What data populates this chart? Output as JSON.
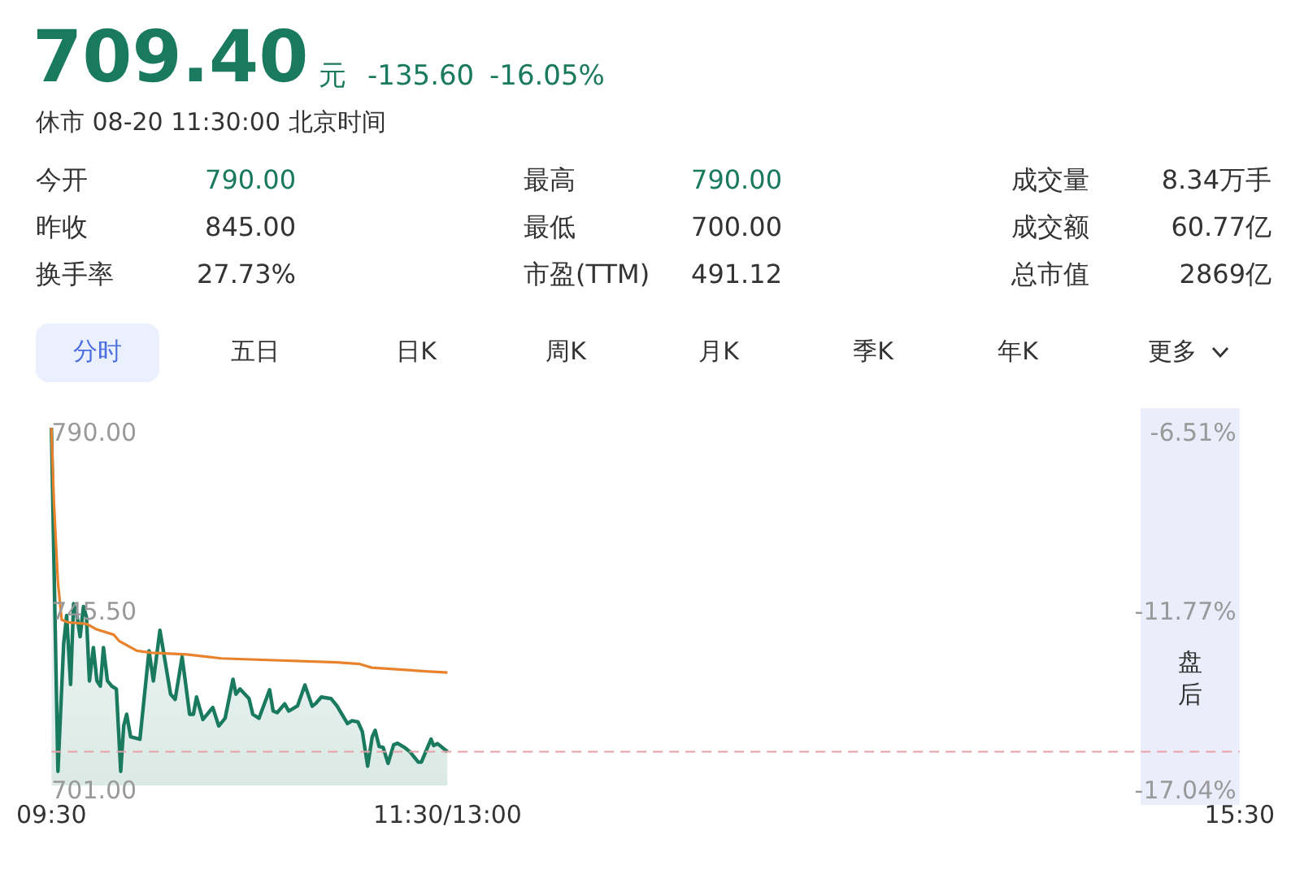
{
  "chart_data": [
    {
      "type": "other",
      "title": "709.40",
      "subtitle": "休市 08-20 11:30:00 北京时间",
      "annotations": [
        "元",
        "-135.60",
        "-16.05%",
        "今开",
        "790.00",
        "最高",
        "790.00",
        "成交量",
        "8.34万手",
        "昨收",
        "845.00",
        "最低",
        "700.00",
        "成交额",
        "60.77亿",
        "换手率",
        "27.73%",
        "市盈(TTM)",
        "491.12",
        "总市值",
        "2869亿",
        "分时",
        "五日",
        "日K",
        "周K",
        "月K",
        "季K",
        "年K",
        "更多"
      ]
    },
    {
      "type": "line",
      "xlim": [
        9.5,
        15.5
      ],
      "xticks": [
        {
          "value": 9.5,
          "label": "09:30"
        },
        {
          "value": 11.5,
          "label": "11:30/13:00"
        },
        {
          "value": 15.5,
          "label": "15:30"
        }
      ],
      "ylim": [
        701,
        790
      ],
      "yticks": [
        {
          "value": 790,
          "label": "790.00"
        },
        {
          "value": 745.5,
          "label": "745.50"
        },
        {
          "value": 701,
          "label": "701.00"
        }
      ],
      "y2lim": [
        -17.04,
        -6.51
      ],
      "y2ticks": [
        {
          "value": -6.51,
          "label": "-6.51%"
        },
        {
          "value": -11.77,
          "label": "-11.77%"
        },
        {
          "value": -17.04,
          "label": "-17.04%"
        }
      ],
      "series": [
        {
          "type": "area",
          "color": "#1a7a5e",
          "x": [
            9.5,
            9.533,
            9.562,
            9.577,
            9.597,
            9.612,
            9.628,
            9.645,
            9.662,
            9.677,
            9.692,
            9.712,
            9.73,
            9.747,
            9.763,
            9.783,
            9.805,
            9.828,
            9.85,
            9.865,
            9.88,
            9.9,
            9.947,
            9.993,
            10.015,
            10.048,
            10.102,
            10.125,
            10.16,
            10.198,
            10.217,
            10.233,
            10.265,
            10.315,
            10.345,
            10.377,
            10.417,
            10.432,
            10.452,
            10.498,
            10.517,
            10.548,
            10.602,
            10.62,
            10.64,
            10.678,
            10.698,
            10.743,
            10.78,
            10.817,
            10.835,
            10.863,
            10.912,
            10.942,
            10.995,
            11.018,
            11.048,
            11.07,
            11.097,
            11.12,
            11.135,
            11.155,
            11.175,
            11.2,
            11.228,
            11.248,
            11.282,
            11.31,
            11.353,
            11.368,
            11.417,
            11.43,
            11.45,
            11.5
          ],
          "values": [
            790,
            704.5,
            736.3,
            743.3,
            726.1,
            746.2,
            743.6,
            738,
            745.5,
            742.9,
            727,
            735.3,
            727,
            725.7,
            735.3,
            727,
            725.7,
            725,
            704.5,
            715.8,
            718.7,
            713.1,
            712.5,
            734.5,
            727,
            739.6,
            723.7,
            722.4,
            733,
            718.7,
            718.7,
            723,
            717.4,
            720.4,
            715.8,
            717.7,
            727.4,
            723.7,
            725,
            722.6,
            718.7,
            717.7,
            724.8,
            719.5,
            719.1,
            721.3,
            719.5,
            720.8,
            726,
            720.7,
            721.4,
            723,
            722.6,
            720.8,
            716.4,
            717.1,
            716.8,
            714.4,
            705.8,
            713.1,
            714.7,
            710.7,
            710.5,
            706.5,
            711.1,
            711.5,
            710.5,
            709.4,
            706.8,
            706.8,
            712.5,
            710.9,
            711.4,
            709.4
          ]
        },
        {
          "type": "line",
          "color": "#e8822c",
          "x": [
            9.5,
            9.513,
            9.533,
            9.552,
            9.582,
            9.677,
            9.725,
            9.815,
            9.843,
            9.932,
            10.008,
            10.183,
            10.358,
            10.535,
            10.942,
            11.058,
            11.117,
            11.388,
            11.5
          ],
          "values": [
            790,
            771.3,
            751.5,
            742.2,
            741.6,
            741.2,
            739.9,
            738.5,
            736.9,
            734.5,
            734,
            733.6,
            732.6,
            732.3,
            731.6,
            731.2,
            730.3,
            729.4,
            729.1
          ]
        }
      ],
      "ref_lines": [
        {
          "axis": "y",
          "value": 709.4,
          "color": "#e8a0a8",
          "line_style": "dashed"
        }
      ],
      "bands": [
        {
          "axis": "x",
          "from": 15,
          "to": 15.5,
          "label": "盘后",
          "color": "#ecedfb"
        }
      ],
      "marker": "none",
      "line_style": "solid",
      "grid": false,
      "legend": false
    }
  ]
}
